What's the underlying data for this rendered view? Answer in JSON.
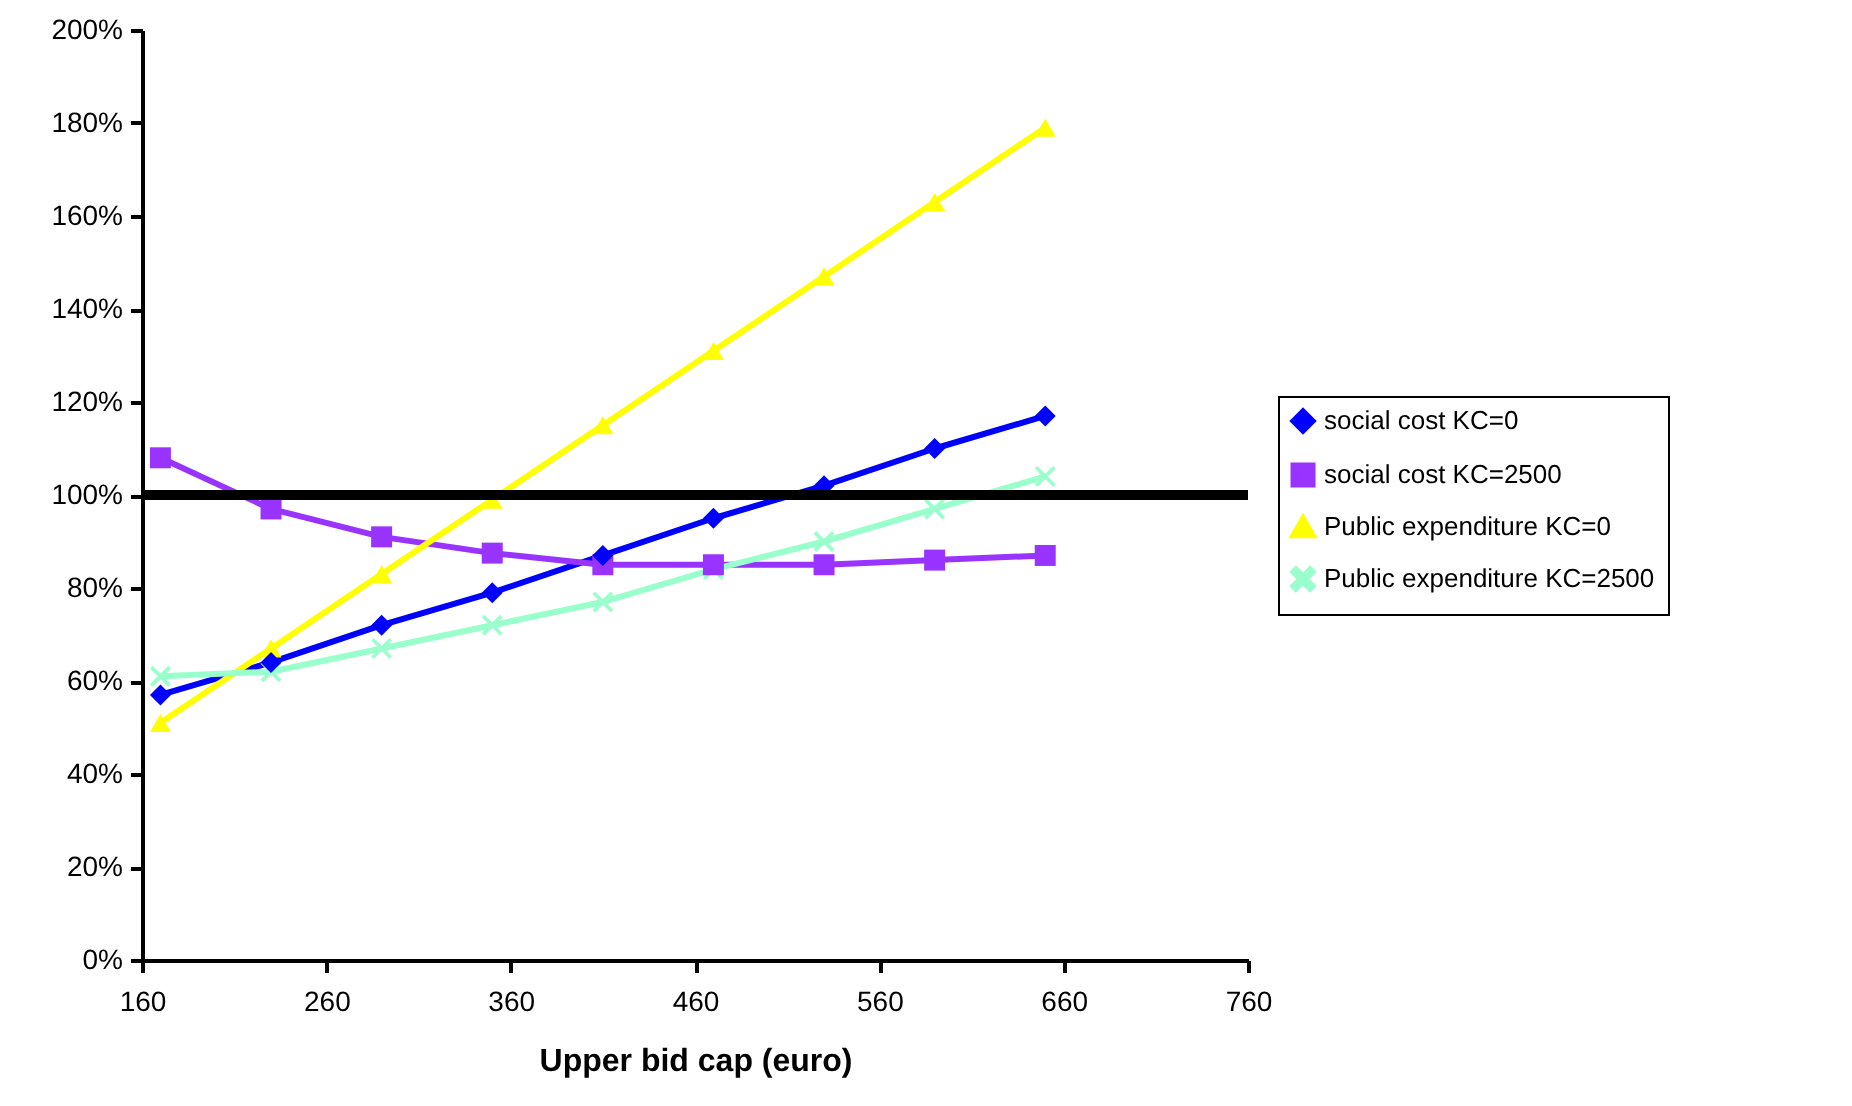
{
  "chart_data": {
    "type": "line",
    "xlabel": "Upper bid cap (euro)",
    "x": [
      170,
      230,
      290,
      350,
      410,
      470,
      530,
      590,
      650
    ],
    "xlim": [
      160,
      760
    ],
    "xticks": [
      160,
      260,
      360,
      460,
      560,
      660,
      760
    ],
    "ylim": [
      0,
      200
    ],
    "yticks": [
      {
        "value": 0,
        "label": "0%"
      },
      {
        "value": 20,
        "label": "20%"
      },
      {
        "value": 40,
        "label": "40%"
      },
      {
        "value": 60,
        "label": "60%"
      },
      {
        "value": 80,
        "label": "80%"
      },
      {
        "value": 100,
        "label": "100%"
      },
      {
        "value": 120,
        "label": "120%"
      },
      {
        "value": 140,
        "label": "140%"
      },
      {
        "value": 160,
        "label": "160%"
      },
      {
        "value": 180,
        "label": "180%"
      },
      {
        "value": 200,
        "label": "200%"
      }
    ],
    "grid": false,
    "legend": "right",
    "line_style": "solid",
    "series": [
      {
        "name": "social cost KC=0",
        "color": "#0000ff",
        "marker": "diamond",
        "values": [
          57,
          64,
          72,
          79,
          87,
          95,
          102,
          110,
          117
        ]
      },
      {
        "name": "social cost KC=2500",
        "color": "#9933ff",
        "marker": "square",
        "values": [
          108,
          97,
          91,
          87.5,
          85,
          85,
          85,
          86,
          87
        ]
      },
      {
        "name": "Public expenditure KC=0",
        "color": "#ffff00",
        "marker": "triangle",
        "values": [
          51,
          67,
          83,
          99,
          115,
          131,
          147,
          163,
          179
        ]
      },
      {
        "name": "Public expenditure KC=2500",
        "color": "#99ffcc",
        "marker": "cross",
        "values": [
          61,
          62,
          67,
          72,
          77,
          84,
          90,
          97,
          104
        ]
      }
    ],
    "ref_lines": [
      {
        "axis": "y",
        "value": 100,
        "color": "#000000"
      }
    ]
  }
}
